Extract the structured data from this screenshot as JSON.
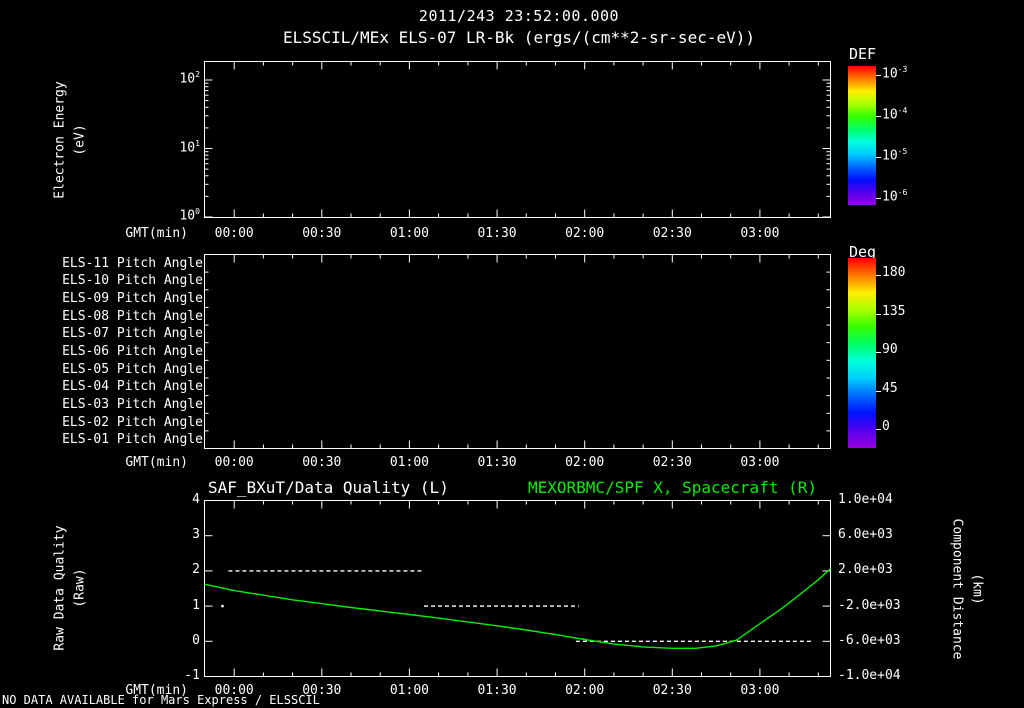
{
  "header": {
    "title": "2011/243 23:52:00.000",
    "subtitle": "ELSSCIL/MEx ELS-07 LR-Bk (ergs/(cm**2-sr-sec-eV))"
  },
  "time_axis": {
    "label": "GMT(min)",
    "tick_labels": [
      "00:00",
      "00:30",
      "01:00",
      "01:30",
      "02:00",
      "02:30",
      "03:00"
    ],
    "tick_minutes": [
      0,
      30,
      60,
      90,
      120,
      150,
      180
    ],
    "range_minutes": [
      -10,
      204
    ]
  },
  "panel_energy": {
    "y_axis_label_lines": [
      "Electron Energy",
      "(eV)"
    ],
    "y_tick_labels": [
      {
        "base": "10",
        "exp": "2"
      },
      {
        "base": "10",
        "exp": "1"
      },
      {
        "base": "10",
        "exp": "0"
      }
    ],
    "colorbar": {
      "title": "DEF",
      "tick_labels": [
        {
          "base": "10",
          "exp": "-3"
        },
        {
          "base": "10",
          "exp": "-4"
        },
        {
          "base": "10",
          "exp": "-5"
        },
        {
          "base": "10",
          "exp": "-6"
        }
      ],
      "gradient_colors": [
        "#ff0000",
        "#ff7700",
        "#ffee00",
        "#aaff00",
        "#33ff00",
        "#00ff66",
        "#00ffdd",
        "#00ccff",
        "#0066ff",
        "#0011ff",
        "#5500ee",
        "#9900dd"
      ]
    }
  },
  "panel_pitch": {
    "row_labels": [
      "ELS-11 Pitch Angle",
      "ELS-10 Pitch Angle",
      "ELS-09 Pitch Angle",
      "ELS-08 Pitch Angle",
      "ELS-07 Pitch Angle",
      "ELS-06 Pitch Angle",
      "ELS-05 Pitch Angle",
      "ELS-04 Pitch Angle",
      "ELS-03 Pitch Angle",
      "ELS-02 Pitch Angle",
      "ELS-01 Pitch Angle"
    ],
    "colorbar": {
      "title": "Deg",
      "tick_labels": [
        "180",
        "135",
        "90",
        "45",
        "0"
      ],
      "gradient_colors": [
        "#ff0000",
        "#ff7700",
        "#ffee00",
        "#aaff00",
        "#33ff00",
        "#00ff66",
        "#00ffdd",
        "#00ccff",
        "#0066ff",
        "#0011ff",
        "#5500ee",
        "#9900dd"
      ]
    }
  },
  "panel_quality": {
    "title_left": "SAF_BXuT/Data Quality (L)",
    "title_right": "MEXORBMC/SPF X, Spacecraft (R)",
    "left_axis_label_lines": [
      "Raw Data Quality",
      "(Raw)"
    ],
    "left_tick_labels": [
      "4",
      "3",
      "2",
      "1",
      "0",
      "-1"
    ],
    "right_tick_labels": [
      "1.0e+04",
      "6.0e+03",
      "2.0e+03",
      "-2.0e+03",
      "-6.0e+03",
      "-1.0e+04"
    ],
    "right_axis_label_lines": [
      "Component Distance",
      "(km)"
    ]
  },
  "footer": {
    "status_text": "NO DATA AVAILABLE for Mars Express / ELSSCIL"
  },
  "colors": {
    "background": "#000000",
    "foreground": "#ffffff",
    "series_green": "#00ee00",
    "quality_white": "#ffffff"
  },
  "chart_data": [
    {
      "type": "heatmap",
      "panel": "electron-energy-spectrogram",
      "title": "ELSSCIL/MEx ELS-07 LR-Bk (ergs/(cm**2-sr-sec-eV))",
      "xlabel": "GMT(min)",
      "ylabel": "Electron Energy (eV)",
      "y_scale": "log",
      "ylim": [
        1,
        180
      ],
      "x_ticks": [
        "00:00",
        "00:30",
        "01:00",
        "01:30",
        "02:00",
        "02:30",
        "03:00"
      ],
      "colorbar": {
        "label": "DEF",
        "scale": "log",
        "ticks": [
          0.001,
          0.0001,
          1e-05,
          1e-06
        ]
      },
      "values": [],
      "note": "panel empty - no data plotted"
    },
    {
      "type": "heatmap",
      "panel": "pitch-angle",
      "rows": [
        "ELS-11",
        "ELS-10",
        "ELS-09",
        "ELS-08",
        "ELS-07",
        "ELS-06",
        "ELS-05",
        "ELS-04",
        "ELS-03",
        "ELS-02",
        "ELS-01"
      ],
      "xlabel": "GMT(min)",
      "x_ticks": [
        "00:00",
        "00:30",
        "01:00",
        "01:30",
        "02:00",
        "02:30",
        "03:00"
      ],
      "colorbar": {
        "label": "Deg",
        "ticks": [
          180,
          135,
          90,
          45,
          0
        ]
      },
      "values": [],
      "note": "panel empty - no data plotted"
    },
    {
      "type": "line",
      "panel": "quality-and-distance",
      "xlabel": "GMT(min)",
      "x_ticks": [
        "00:00",
        "00:30",
        "01:00",
        "01:30",
        "02:00",
        "02:30",
        "03:00"
      ],
      "x_range_minutes": [
        -10,
        204
      ],
      "ylim_left": [
        -1,
        4
      ],
      "ylim_right": [
        -10000,
        10000
      ],
      "series": [
        {
          "name": "SAF_BXuT/Data Quality (L)",
          "axis": "left",
          "color": "#ffffff",
          "style": "dashed",
          "segments": [
            {
              "value": 2,
              "t_start": -2,
              "t_end": 65
            },
            {
              "value": 1,
              "t_start": 65,
              "t_end": 118
            },
            {
              "value": 0,
              "t_start": 117,
              "t_end": 198
            }
          ],
          "isolated_points": [
            {
              "t": -4,
              "value": 1
            }
          ]
        },
        {
          "name": "MEXORBMC/SPF X, Spacecraft (R)",
          "axis": "right",
          "color": "#00ee00",
          "style": "solid",
          "x_minutes": [
            -10,
            0,
            10,
            20,
            30,
            40,
            50,
            60,
            70,
            80,
            90,
            100,
            110,
            120,
            130,
            140,
            150,
            158,
            165,
            172,
            180,
            187,
            194,
            200,
            204
          ],
          "y_left_units": [
            1.62,
            1.44,
            1.31,
            1.18,
            1.07,
            0.96,
            0.86,
            0.76,
            0.66,
            0.55,
            0.44,
            0.32,
            0.19,
            0.05,
            -0.08,
            -0.16,
            -0.2,
            -0.2,
            -0.13,
            0.03,
            0.5,
            0.9,
            1.35,
            1.75,
            2.05
          ],
          "y_right_km_mapping": "km = 4000 * y_left - 6000"
        }
      ]
    }
  ]
}
